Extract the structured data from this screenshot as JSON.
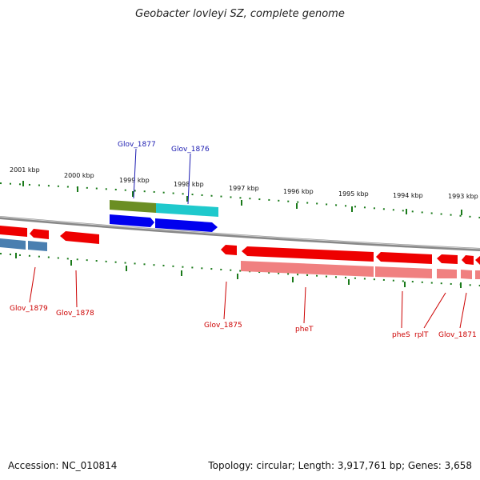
{
  "title": "Geobacter lovleyi SZ, complete genome",
  "footer": {
    "accession": "Accession: NC_010814",
    "summary": "Topology: circular; Length: 3,917,761 bp; Genes: 3,658"
  },
  "ruler_labels": [
    "2001 kbp",
    "2000 kbp",
    "1999 kbp",
    "1998 kbp",
    "1997 kbp",
    "1996 kbp",
    "1995 kbp",
    "1994 kbp",
    "1993 kbp"
  ],
  "genes_top": [
    "Glov_1877",
    "Glov_1876"
  ],
  "genes_bottom": [
    "Glov_1879",
    "Glov_1878",
    "Glov_1875",
    "pheT",
    "pheS",
    "rplT",
    "Glov_1871"
  ],
  "colors": {
    "forward_cds": "#0000ee",
    "reverse_cds": "#ee0000",
    "reverse_cds_light": "#f08080",
    "forward_feature_a": "#6b8e23",
    "forward_feature_b": "#1fc9cc",
    "reverse_feature_blue": "#4a7fb0",
    "backbone": "#888888",
    "tick": "#1a7a1a",
    "label_blue": "#1a1ab0",
    "label_red": "#cc0000"
  }
}
